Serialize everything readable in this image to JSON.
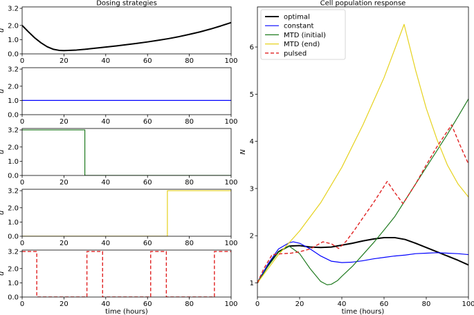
{
  "chart_data": [
    {
      "type": "line",
      "title": "Dosing strategies",
      "xlabel": "",
      "ylabel": "u",
      "xlim": [
        0,
        100
      ],
      "ylim": [
        0,
        3.3
      ],
      "xticks": [
        "0",
        "20",
        "40",
        "60",
        "80",
        "100"
      ],
      "yticks": [
        "0.0",
        "1.0",
        "2.0",
        "3.2"
      ],
      "series": [
        {
          "name": "optimal",
          "color": "#000000",
          "dash": "solid",
          "width": 2,
          "x": [
            0,
            3,
            6,
            9,
            12,
            15,
            18,
            20,
            22,
            26,
            30,
            35,
            40,
            45,
            50,
            55,
            60,
            65,
            70,
            75,
            80,
            85,
            90,
            95,
            100
          ],
          "y": [
            2.0,
            1.55,
            1.13,
            0.78,
            0.5,
            0.32,
            0.24,
            0.23,
            0.24,
            0.27,
            0.32,
            0.4,
            0.48,
            0.56,
            0.65,
            0.74,
            0.84,
            0.95,
            1.07,
            1.21,
            1.37,
            1.54,
            1.74,
            1.96,
            2.2
          ]
        }
      ]
    },
    {
      "type": "line",
      "xlabel": "",
      "ylabel": "u",
      "xlim": [
        0,
        100
      ],
      "ylim": [
        0,
        3.3
      ],
      "xticks": [
        "0",
        "20",
        "40",
        "60",
        "80",
        "100"
      ],
      "yticks": [
        "0.0",
        "1.0",
        "2.0",
        "3.2"
      ],
      "series": [
        {
          "name": "constant",
          "color": "#0000ff",
          "dash": "solid",
          "width": 1.2,
          "x": [
            0,
            100
          ],
          "y": [
            1.0,
            1.0
          ]
        }
      ]
    },
    {
      "type": "line",
      "xlabel": "",
      "ylabel": "u",
      "xlim": [
        0,
        100
      ],
      "ylim": [
        0,
        3.3
      ],
      "xticks": [
        "0",
        "20",
        "40",
        "60",
        "80",
        "100"
      ],
      "yticks": [
        "0.0",
        "1.0",
        "2.0",
        "3.2"
      ],
      "series": [
        {
          "name": "MTD (initial)",
          "color": "#1f7a1f",
          "dash": "solid",
          "width": 1.2,
          "x": [
            0,
            30,
            30,
            100
          ],
          "y": [
            3.2,
            3.2,
            0.0,
            0.0
          ]
        }
      ]
    },
    {
      "type": "line",
      "xlabel": "",
      "ylabel": "u",
      "xlim": [
        0,
        100
      ],
      "ylim": [
        0,
        3.3
      ],
      "xticks": [
        "0",
        "20",
        "40",
        "60",
        "80",
        "100"
      ],
      "yticks": [
        "0.0",
        "1.0",
        "2.0",
        "3.2"
      ],
      "series": [
        {
          "name": "MTD (end)",
          "color": "#e6d21e",
          "dash": "solid",
          "width": 1.2,
          "x": [
            0,
            69.5,
            69.5,
            100
          ],
          "y": [
            0.0,
            0.0,
            3.2,
            3.2
          ]
        }
      ]
    },
    {
      "type": "line",
      "xlabel": "time (hours)",
      "ylabel": "u",
      "xlim": [
        0,
        100
      ],
      "ylim": [
        0,
        3.3
      ],
      "xticks": [
        "0",
        "20",
        "40",
        "60",
        "80",
        "100"
      ],
      "yticks": [
        "0.0",
        "1.0",
        "2.0",
        "3.2"
      ],
      "series": [
        {
          "name": "pulsed",
          "color": "#e02020",
          "dash": "dashed",
          "width": 1.4,
          "x": [
            0,
            7,
            7,
            31,
            31,
            38.5,
            38.5,
            61.5,
            61.5,
            69,
            69,
            92,
            92,
            100
          ],
          "y": [
            3.2,
            3.2,
            0.0,
            0.0,
            3.2,
            3.2,
            0.0,
            0.0,
            3.2,
            3.2,
            0.0,
            0.0,
            3.2,
            3.2
          ]
        }
      ]
    },
    {
      "type": "line",
      "title": "Cell population response",
      "xlabel": "time (hours)",
      "ylabel": "N",
      "xlim": [
        0,
        100
      ],
      "ylim": [
        0.7,
        6.85
      ],
      "xticks": [
        "0",
        "20",
        "40",
        "60",
        "80",
        "100"
      ],
      "yticks": [
        "1",
        "2",
        "3",
        "4",
        "5",
        "6"
      ],
      "legend": "top-left",
      "series": [
        {
          "name": "optimal",
          "color": "#000000",
          "dash": "solid",
          "width": 2,
          "x": [
            0,
            5,
            10,
            15,
            20,
            25,
            30,
            35,
            40,
            45,
            50,
            55,
            60,
            65,
            70,
            75,
            80,
            85,
            90,
            95,
            100
          ],
          "y": [
            1.0,
            1.38,
            1.66,
            1.78,
            1.79,
            1.76,
            1.75,
            1.76,
            1.8,
            1.84,
            1.89,
            1.93,
            1.96,
            1.96,
            1.92,
            1.84,
            1.75,
            1.66,
            1.57,
            1.48,
            1.38
          ]
        },
        {
          "name": "constant",
          "color": "#0000ff",
          "dash": "solid",
          "width": 1.2,
          "x": [
            0,
            5,
            10,
            15,
            17,
            20,
            25,
            30,
            35,
            40,
            45,
            50,
            55,
            60,
            65,
            70,
            75,
            80,
            85,
            90,
            95,
            100
          ],
          "y": [
            1.0,
            1.4,
            1.72,
            1.85,
            1.87,
            1.84,
            1.72,
            1.57,
            1.46,
            1.43,
            1.44,
            1.47,
            1.51,
            1.54,
            1.57,
            1.59,
            1.62,
            1.63,
            1.64,
            1.63,
            1.62,
            1.6
          ]
        },
        {
          "name": "MTD (initial)",
          "color": "#1f7a1f",
          "dash": "solid",
          "width": 1.2,
          "x": [
            0,
            5,
            10,
            15,
            20,
            25,
            30,
            33,
            35,
            38,
            40,
            45,
            50,
            55,
            60,
            65,
            70,
            75,
            80,
            85,
            90,
            95,
            100
          ],
          "y": [
            1.0,
            1.35,
            1.65,
            1.78,
            1.62,
            1.3,
            1.03,
            0.96,
            0.97,
            1.05,
            1.14,
            1.35,
            1.6,
            1.85,
            2.12,
            2.4,
            2.75,
            3.1,
            3.45,
            3.8,
            4.15,
            4.52,
            4.9
          ]
        },
        {
          "name": "MTD (end)",
          "color": "#e6d21e",
          "dash": "solid",
          "width": 1.2,
          "x": [
            0,
            10,
            20,
            30,
            40,
            50,
            60,
            69.5,
            75,
            80,
            85,
            90,
            95,
            100
          ],
          "y": [
            1.0,
            1.6,
            2.1,
            2.7,
            3.45,
            4.35,
            5.35,
            6.48,
            5.5,
            4.7,
            4.05,
            3.5,
            3.1,
            2.82
          ]
        },
        {
          "name": "pulsed",
          "color": "#e02020",
          "dash": "dashed",
          "width": 1.4,
          "x": [
            0,
            3,
            7,
            12,
            16,
            20,
            25,
            31,
            35,
            38.5,
            42,
            46,
            50,
            55,
            61.5,
            65,
            69,
            75,
            80,
            85,
            92,
            96,
            100
          ],
          "y": [
            1.0,
            1.3,
            1.6,
            1.62,
            1.63,
            1.66,
            1.72,
            1.87,
            1.83,
            1.73,
            1.88,
            2.12,
            2.38,
            2.7,
            3.15,
            2.92,
            2.68,
            3.1,
            3.5,
            3.88,
            4.35,
            3.92,
            3.52
          ]
        }
      ]
    }
  ]
}
